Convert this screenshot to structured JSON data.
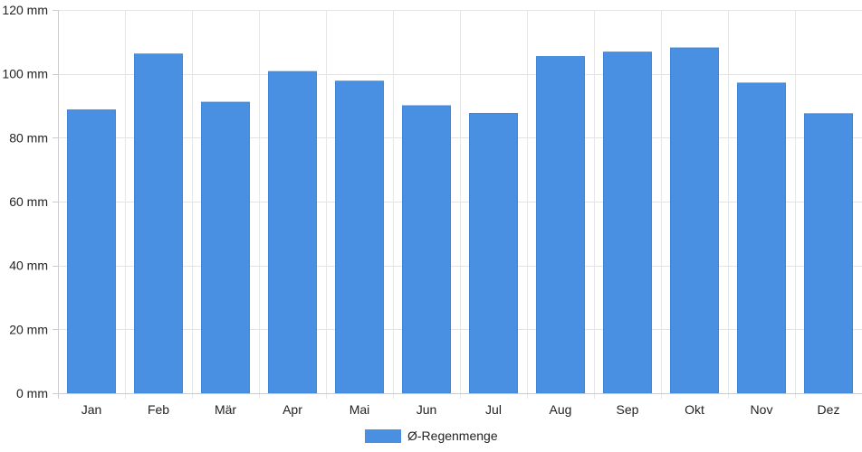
{
  "chart_data": {
    "type": "bar",
    "categories": [
      "Jan",
      "Feb",
      "Mär",
      "Apr",
      "Mai",
      "Jun",
      "Jul",
      "Aug",
      "Sep",
      "Okt",
      "Nov",
      "Dez"
    ],
    "series": [
      {
        "name": "Ø-Regenmenge",
        "values": [
          88.7,
          106.2,
          91.1,
          100.7,
          97.7,
          90.0,
          87.6,
          105.4,
          106.8,
          108.1,
          97.1,
          87.5
        ],
        "color": "#4a90e2"
      }
    ],
    "ylim": [
      0,
      120
    ],
    "yticks": [
      0,
      20,
      40,
      60,
      80,
      100,
      120
    ],
    "y_unit": "mm",
    "ytick_labels": [
      "0 mm",
      "20 mm",
      "40 mm",
      "60 mm",
      "80 mm",
      "100 mm",
      "120 mm"
    ],
    "grid": true,
    "legend_position": "bottom-center"
  }
}
